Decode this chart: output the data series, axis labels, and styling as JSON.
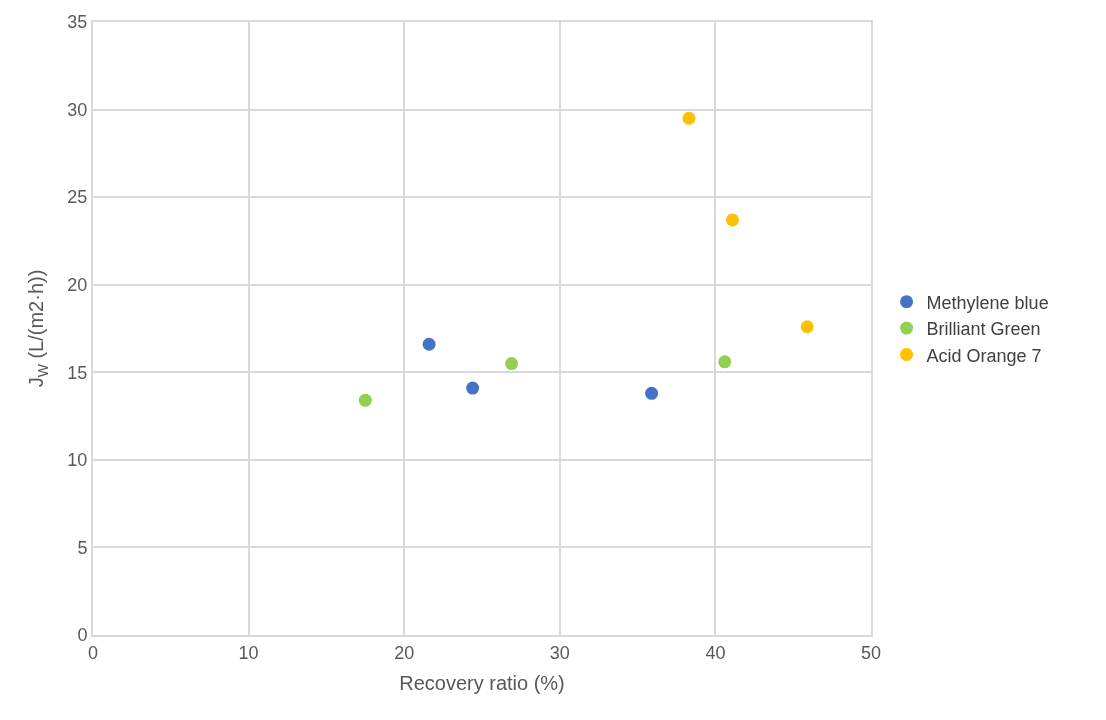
{
  "chart_data": {
    "type": "scatter",
    "xlabel": "Recovery ratio (%)",
    "ylabel": "J$_{W}$ (L/(m2·h))",
    "xlim": [
      0,
      50
    ],
    "xticks": [
      0,
      10,
      20,
      30,
      40,
      50
    ],
    "ylim": [
      0,
      35
    ],
    "yticks": [
      0,
      5,
      10,
      15,
      20,
      25,
      30,
      35
    ],
    "grid": true,
    "legend": "right",
    "marker": "circle",
    "series": [
      {
        "name": "Methylene blue",
        "color": "#4472c4",
        "x": [
          21.6,
          24.4,
          35.9
        ],
        "values": [
          16.6,
          14.1,
          13.8
        ]
      },
      {
        "name": "Brilliant Green",
        "color": "#92d050",
        "x": [
          17.5,
          26.9,
          40.6
        ],
        "values": [
          13.4,
          15.5,
          15.6
        ]
      },
      {
        "name": "Acid Orange 7",
        "color": "#ffc000",
        "x": [
          38.3,
          41.1,
          45.9
        ],
        "values": [
          29.5,
          23.7,
          17.6
        ]
      }
    ]
  }
}
